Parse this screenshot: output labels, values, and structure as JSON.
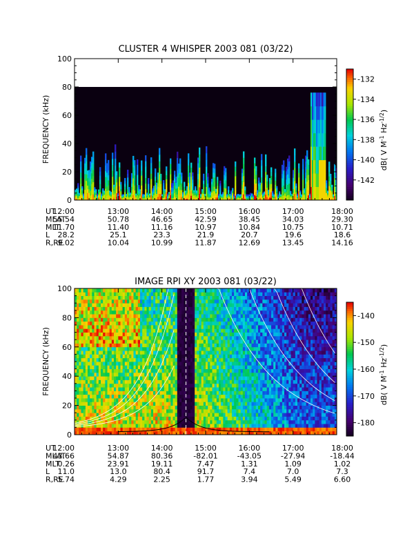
{
  "chart_data": [
    {
      "type": "heatmap",
      "title": "CLUSTER 4 WHISPER 2003 081 (03/22)",
      "ylabel": "FREQUENCY (kHz)",
      "ylim": [
        0,
        100
      ],
      "yticks": [
        0,
        20,
        40,
        60,
        80,
        100
      ],
      "xlim_hours": [
        12,
        18
      ],
      "xtick_labels": [
        "12:00",
        "13:00",
        "14:00",
        "15:00",
        "16:00",
        "17:00",
        "18:00"
      ],
      "data_freq_max": 80,
      "colorbar": {
        "label_main": "dB( V M",
        "label_sup1": "-1",
        "label_mid": " Hz",
        "label_sup2": "-1/2",
        "label_end": ")",
        "range": [
          -144,
          -131
        ],
        "ticks": [
          -132,
          -134,
          -136,
          -138,
          -140,
          -142
        ]
      },
      "ephemeris": {
        "rows": [
          {
            "label": "UT",
            "values": [
              "12:00",
              "13:00",
              "14:00",
              "15:00",
              "16:00",
              "17:00",
              "18:00"
            ]
          },
          {
            "label": "MLAT",
            "values": [
              "55.54",
              "50.78",
              "46.65",
              "42.59",
              "38.45",
              "34.03",
              "29.30"
            ]
          },
          {
            "label": "MLT",
            "values": [
              "11.70",
              "11.40",
              "11.16",
              "10.97",
              "10.84",
              "10.75",
              "10.71"
            ]
          },
          {
            "label": "L",
            "values": [
              "28.2",
              "25.1",
              "23.3",
              "21.9",
              "20.7",
              "19.6",
              "18.6"
            ]
          },
          {
            "label": "R,RE",
            "values": [
              "9.02",
              "10.04",
              "10.99",
              "11.87",
              "12.69",
              "13.45",
              "14.16"
            ]
          }
        ]
      }
    },
    {
      "type": "heatmap",
      "title": "IMAGE RPI XY 2003 081 (03/22)",
      "ylabel": "FREQUENCY (kHz)",
      "ylim": [
        0,
        100
      ],
      "yticks": [
        0,
        20,
        40,
        60,
        80,
        100
      ],
      "xlim_hours": [
        12,
        18
      ],
      "xtick_labels": [
        "12:00",
        "13:00",
        "14:00",
        "15:00",
        "16:00",
        "17:00",
        "18:00"
      ],
      "colorbar": {
        "label_main": "dB( V M",
        "label_sup1": "-1",
        "label_mid": " Hz",
        "label_sup2": "-1/2",
        "label_end": ")",
        "range": [
          -185,
          -135
        ],
        "ticks": [
          -140,
          -150,
          -160,
          -170,
          -180
        ]
      },
      "ephemeris": {
        "rows": [
          {
            "label": "UT",
            "values": [
              "12:00",
              "13:00",
              "14:00",
              "15:00",
              "16:00",
              "17:00",
              "18:00"
            ]
          },
          {
            "label": "MLAT",
            "values": [
              "43.66",
              "54.87",
              "80.36",
              "-82.01",
              "-43.05",
              "-27.94",
              "-18.44"
            ]
          },
          {
            "label": "MLT",
            "values": [
              "0.26",
              "23.91",
              "19.11",
              "7.47",
              "1.31",
              "1.09",
              "1.02"
            ]
          },
          {
            "label": "L",
            "values": [
              "11.0",
              "13.0",
              "80.4",
              "91.7",
              "7.4",
              "7.0",
              "7.3"
            ]
          },
          {
            "label": "R,RE",
            "values": [
              "5.74",
              "4.29",
              "2.25",
              "1.77",
              "3.94",
              "5.49",
              "6.60"
            ]
          }
        ]
      }
    }
  ]
}
